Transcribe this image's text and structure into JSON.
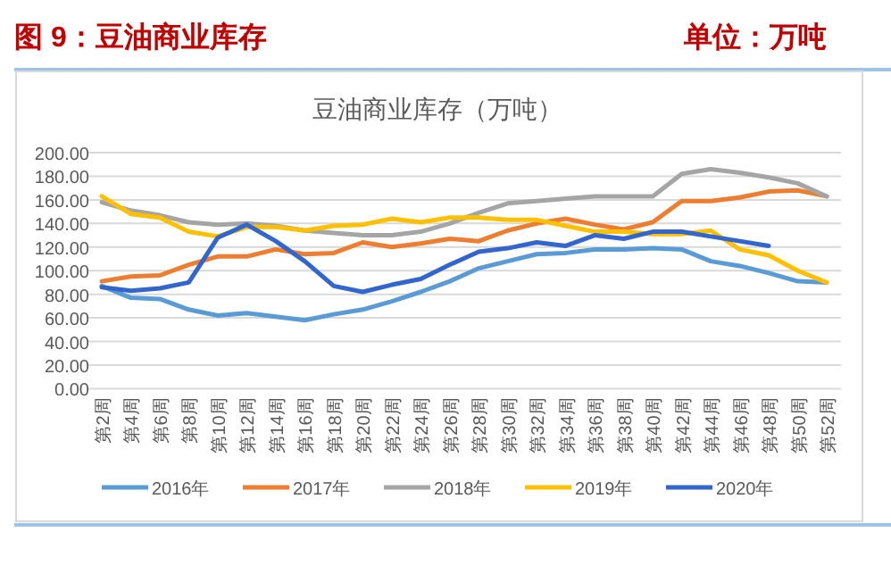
{
  "chart_data": {
    "type": "line",
    "title": "图 9：豆油商业库存",
    "subtitle": "豆油商业库存（万吨）",
    "annotations": [
      "单位：万吨"
    ],
    "categories": [
      "第2周",
      "第4周",
      "第6周",
      "第8周",
      "第10周",
      "第12周",
      "第14周",
      "第16周",
      "第18周",
      "第20周",
      "第22周",
      "第24周",
      "第26周",
      "第28周",
      "第30周",
      "第32周",
      "第34周",
      "第36周",
      "第38周",
      "第40周",
      "第42周",
      "第44周",
      "第46周",
      "第48周",
      "第50周",
      "第52周"
    ],
    "series": [
      {
        "name": "2016年",
        "color": "#5b9bd5",
        "values": [
          87,
          77,
          76,
          67,
          62,
          64,
          61,
          58,
          63,
          67,
          74,
          82,
          91,
          102,
          108,
          114,
          115,
          118,
          118,
          119,
          118,
          108,
          104,
          98,
          91,
          90
        ]
      },
      {
        "name": "2017年",
        "color": "#ed7d31",
        "values": [
          91,
          95,
          96,
          105,
          112,
          112,
          118,
          114,
          115,
          124,
          120,
          123,
          127,
          125,
          134,
          140,
          144,
          139,
          135,
          141,
          159,
          159,
          162,
          167,
          168,
          163
        ]
      },
      {
        "name": "2018年",
        "color": "#a5a5a5",
        "values": [
          158,
          151,
          147,
          141,
          139,
          140,
          138,
          134,
          132,
          130,
          130,
          133,
          140,
          149,
          157,
          159,
          161,
          163,
          163,
          163,
          182,
          186,
          183,
          179,
          174,
          163
        ]
      },
      {
        "name": "2019年",
        "color": "#ffc000",
        "values": [
          163,
          148,
          145,
          133,
          129,
          137,
          137,
          134,
          138,
          139,
          144,
          141,
          145,
          145,
          143,
          143,
          138,
          133,
          133,
          131,
          131,
          134,
          118,
          113,
          100,
          90
        ]
      },
      {
        "name": "2020年",
        "color": "#3366cc",
        "values": [
          86,
          83,
          85,
          90,
          128,
          139,
          125,
          108,
          87,
          82,
          88,
          93,
          105,
          116,
          119,
          124,
          121,
          130,
          127,
          133,
          133,
          129,
          125,
          121,
          null,
          null
        ]
      }
    ],
    "ylim": [
      0,
      200
    ],
    "yticks": [
      {
        "value": 0,
        "label": "0.00"
      },
      {
        "value": 20,
        "label": "20.00"
      },
      {
        "value": 40,
        "label": "40.00"
      },
      {
        "value": 60,
        "label": "60.00"
      },
      {
        "value": 80,
        "label": "80.00"
      },
      {
        "value": 100,
        "label": "100.00"
      },
      {
        "value": 120,
        "label": "120.00"
      },
      {
        "value": 140,
        "label": "140.00"
      },
      {
        "value": 160,
        "label": "160.00"
      },
      {
        "value": 180,
        "label": "180.00"
      },
      {
        "value": 200,
        "label": "200.00"
      }
    ],
    "grid": "y",
    "legend": "bottom",
    "marker": "none",
    "line_style": "solid"
  }
}
